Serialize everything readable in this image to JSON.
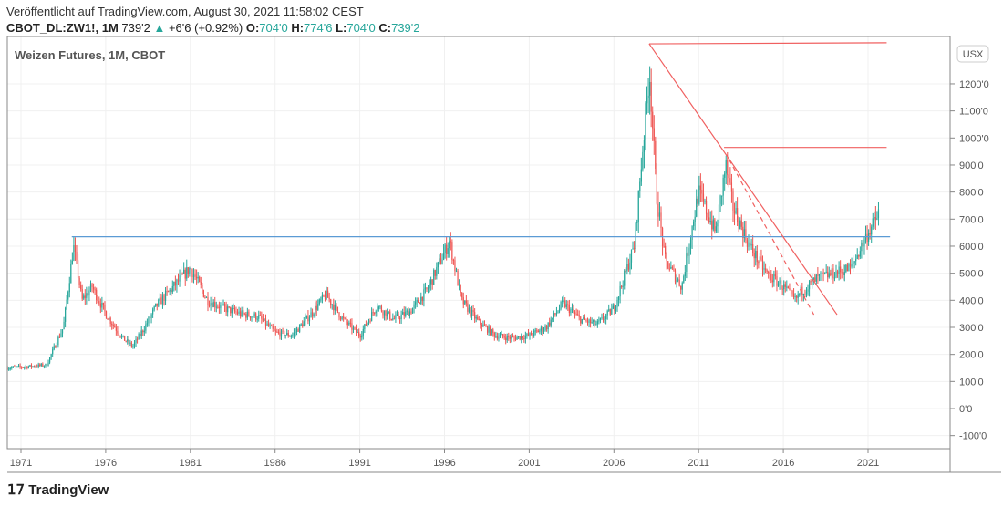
{
  "header": {
    "published": "Veröffentlicht auf TradingView.com, August 30, 2021 11:58:02 CEST",
    "symbol": "CBOT_DL:ZW1!, 1M",
    "last": "739'2",
    "change": "+6'6 (+0.92%)",
    "o_label": "O:",
    "o": "704'0",
    "h_label": "H:",
    "h": "774'6",
    "l_label": "L:",
    "l": "704'0",
    "c_label": "C:",
    "c": "739'2"
  },
  "colors": {
    "up": "#26a69a",
    "down": "#ef5350",
    "hline": "#5b9bd5",
    "trend": "#f06060"
  },
  "footer": {
    "logo": "TradingView"
  },
  "chart_data": {
    "type": "candlestick",
    "title": "Weizen Futures, 1M, CBOT",
    "currency": "USX",
    "ylim": [
      -100,
      1300
    ],
    "yticks": [
      -100,
      0,
      100,
      200,
      300,
      400,
      500,
      600,
      700,
      800,
      900,
      1000,
      1100,
      1200
    ],
    "ytick_labels": [
      "-100'0",
      "0'0",
      "100'0",
      "200'0",
      "300'0",
      "400'0",
      "500'0",
      "600'0",
      "700'0",
      "800'0",
      "900'0",
      "1000'0",
      "1100'0",
      "1200'0"
    ],
    "xlim": [
      1970.2,
      2026.6
    ],
    "xticks": [
      1971,
      1976,
      1981,
      1986,
      1991,
      1996,
      2001,
      2006,
      2011,
      2016,
      2021
    ],
    "price_path": [
      [
        1970.2,
        150
      ],
      [
        1972.5,
        160
      ],
      [
        1973.5,
        300
      ],
      [
        1974.1,
        600
      ],
      [
        1974.6,
        400
      ],
      [
        1975.2,
        450
      ],
      [
        1976,
        350
      ],
      [
        1977,
        260
      ],
      [
        1977.6,
        230
      ],
      [
        1978.3,
        300
      ],
      [
        1979,
        380
      ],
      [
        1980,
        450
      ],
      [
        1981,
        520
      ],
      [
        1982,
        400
      ],
      [
        1983,
        370
      ],
      [
        1984,
        350
      ],
      [
        1985,
        340
      ],
      [
        1986,
        280
      ],
      [
        1987,
        270
      ],
      [
        1988,
        340
      ],
      [
        1989,
        420
      ],
      [
        1990,
        330
      ],
      [
        1991,
        270
      ],
      [
        1992,
        380
      ],
      [
        1993,
        330
      ],
      [
        1994,
        360
      ],
      [
        1995,
        440
      ],
      [
        1996.3,
        620
      ],
      [
        1997,
        400
      ],
      [
        1998,
        320
      ],
      [
        1999,
        270
      ],
      [
        2000,
        260
      ],
      [
        2001,
        270
      ],
      [
        2002,
        300
      ],
      [
        2003,
        390
      ],
      [
        2004,
        330
      ],
      [
        2005,
        310
      ],
      [
        2006,
        370
      ],
      [
        2007.2,
        600
      ],
      [
        2008.1,
        1250
      ],
      [
        2008.5,
        800
      ],
      [
        2009,
        550
      ],
      [
        2010,
        450
      ],
      [
        2010.7,
        700
      ],
      [
        2011,
        800
      ],
      [
        2012,
        650
      ],
      [
        2012.6,
        900
      ],
      [
        2013,
        750
      ],
      [
        2014,
        600
      ],
      [
        2015,
        500
      ],
      [
        2016,
        450
      ],
      [
        2016.7,
        400
      ],
      [
        2017,
        430
      ],
      [
        2018,
        480
      ],
      [
        2019,
        500
      ],
      [
        2020,
        520
      ],
      [
        2021,
        650
      ],
      [
        2021.5,
        700
      ],
      [
        2021.66,
        739
      ]
    ],
    "drawings": [
      {
        "kind": "hline",
        "color": "hline",
        "x": [
          1974.0,
          2022.3
        ],
        "y": [
          635,
          635
        ]
      },
      {
        "kind": "hline",
        "color": "trend",
        "x": [
          2008.08,
          2022.1
        ],
        "y": [
          1348,
          1352
        ]
      },
      {
        "kind": "hline",
        "color": "trend",
        "x": [
          2012.5,
          2022.1
        ],
        "y": [
          965,
          965
        ]
      },
      {
        "kind": "trend",
        "color": "trend",
        "x": [
          2008.08,
          2019.17
        ],
        "y": [
          1348,
          347
        ]
      },
      {
        "kind": "dashed",
        "color": "trend",
        "x": [
          2012.8,
          2017.8
        ],
        "y": [
          920,
          347
        ]
      }
    ]
  }
}
